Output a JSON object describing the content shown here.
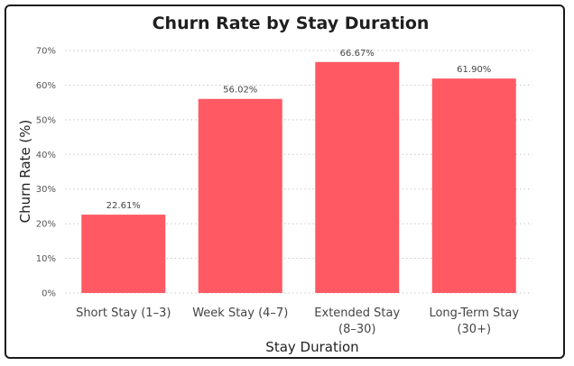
{
  "chart_data": {
    "type": "bar",
    "title": "Churn Rate by Stay Duration",
    "xlabel": "Stay Duration",
    "ylabel": "Churn Rate (%)",
    "categories": [
      [
        "Short Stay (1–3)"
      ],
      [
        "Week Stay (4–7)"
      ],
      [
        "Extended Stay",
        "(8–30)"
      ],
      [
        "Long-Term Stay",
        "(30+)"
      ]
    ],
    "values": [
      22.61,
      56.02,
      66.67,
      61.9
    ],
    "data_labels": [
      "22.61%",
      "56.02%",
      "66.67%",
      "61.90%"
    ],
    "ylim": [
      0,
      70
    ],
    "yticks": [
      "0%",
      "10%",
      "20%",
      "30%",
      "40%",
      "50%",
      "60%",
      "70%"
    ],
    "grid": true,
    "bar_color": "#ff5a63"
  }
}
